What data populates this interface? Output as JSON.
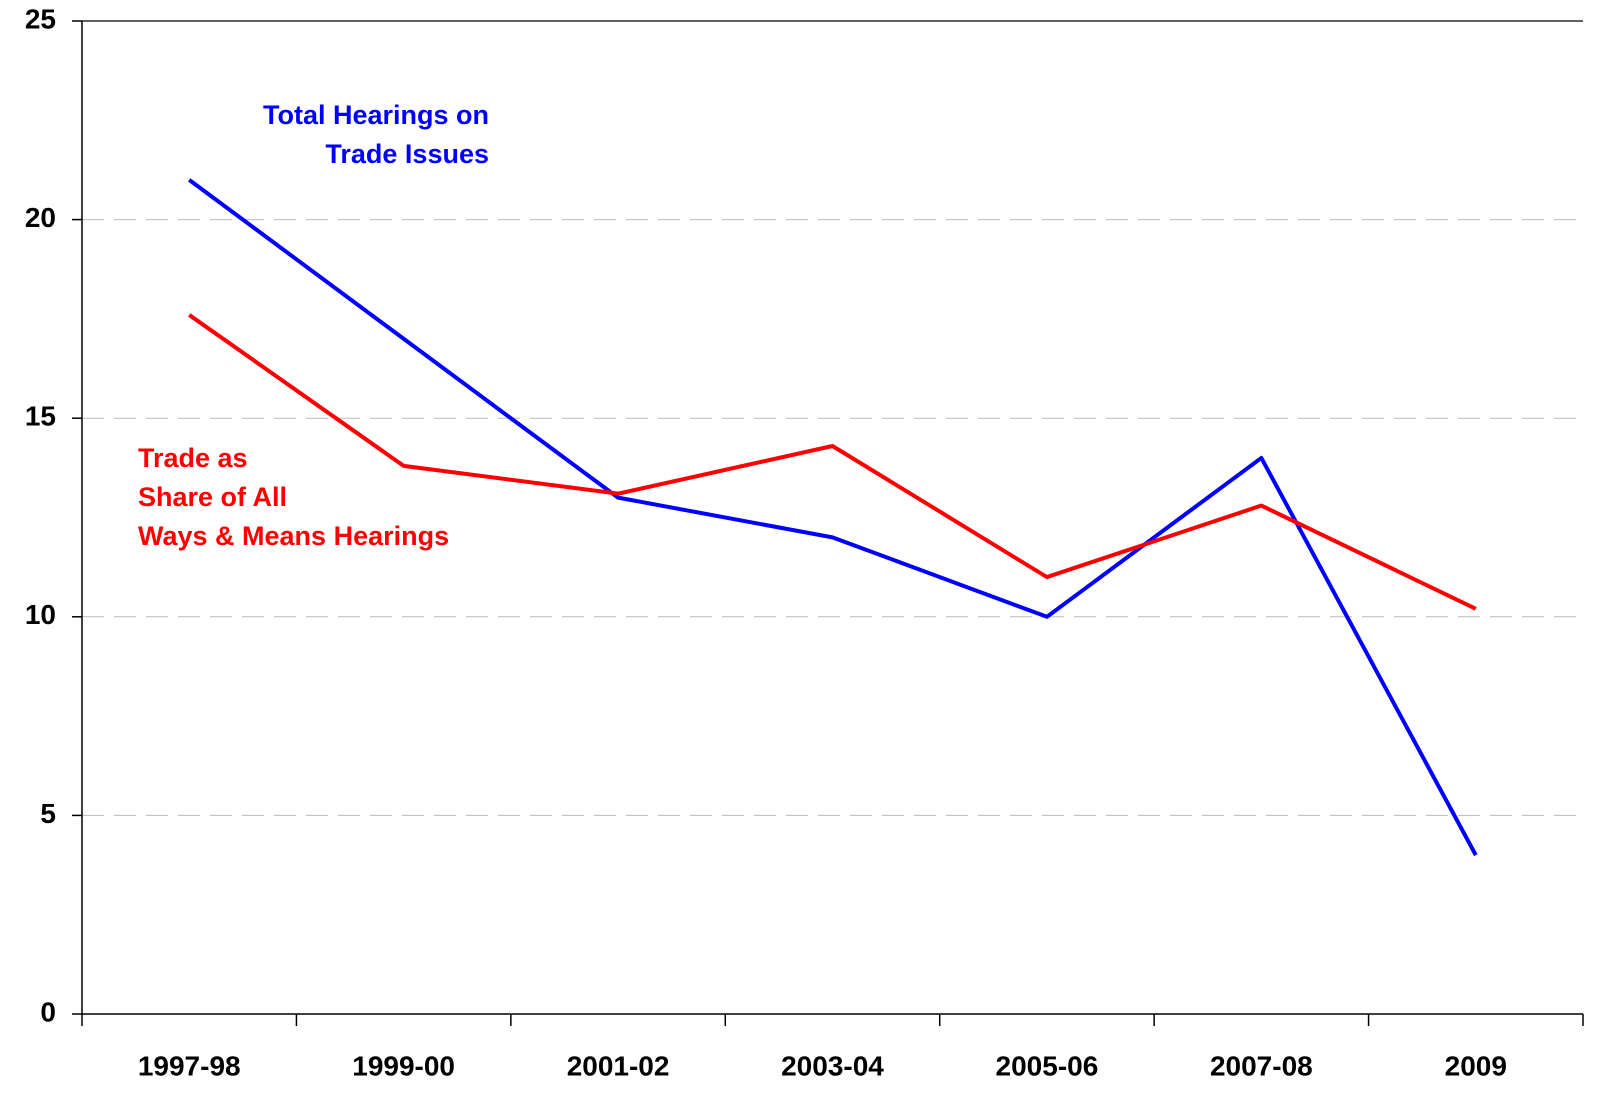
{
  "chart_data": {
    "type": "line",
    "categories": [
      "1997-98",
      "1999-00",
      "2001-02",
      "2003-04",
      "2005-06",
      "2007-08",
      "2009"
    ],
    "series": [
      {
        "name": "Total Hearings on\nTrade Issues",
        "color": "#0000ff",
        "values": [
          21,
          17,
          13,
          12,
          10,
          14,
          4
        ]
      },
      {
        "name": "Trade as\nShare of All\nWays & Means Hearings",
        "color": "#ff0000",
        "values": [
          17.6,
          13.8,
          13.1,
          14.3,
          11.0,
          12.8,
          10.2
        ]
      }
    ],
    "ylim": [
      0,
      25
    ],
    "yticks": [
      0,
      5,
      10,
      15,
      20,
      25
    ],
    "grid": true
  }
}
